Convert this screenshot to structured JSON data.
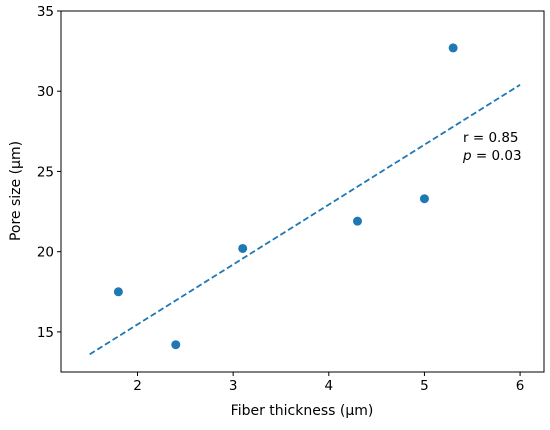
{
  "chart_data": {
    "type": "scatter",
    "title": "",
    "xlabel": "Fiber thickness (μm)",
    "ylabel": "Pore size (μm)",
    "xlim": [
      1.2,
      6.25
    ],
    "ylim": [
      12.5,
      35
    ],
    "x_ticks": [
      2,
      3,
      4,
      5,
      6
    ],
    "y_ticks": [
      15,
      20,
      25,
      30,
      35
    ],
    "grid": false,
    "series": [
      {
        "name": "",
        "color": "#1f77b4",
        "points": [
          {
            "x": 1.8,
            "y": 17.5
          },
          {
            "x": 2.4,
            "y": 14.2
          },
          {
            "x": 3.1,
            "y": 20.2
          },
          {
            "x": 4.3,
            "y": 21.9
          },
          {
            "x": 5.0,
            "y": 23.3
          },
          {
            "x": 5.3,
            "y": 32.7
          }
        ]
      }
    ],
    "trendline": {
      "style": "dashed",
      "color": "#1f77b4",
      "x_start": 1.5,
      "y_start": 13.6,
      "x_end": 6.0,
      "y_end": 30.4
    },
    "annotations": {
      "r_text": "r = 0.85",
      "p_label": "p",
      "p_rest": " = 0.03"
    }
  }
}
